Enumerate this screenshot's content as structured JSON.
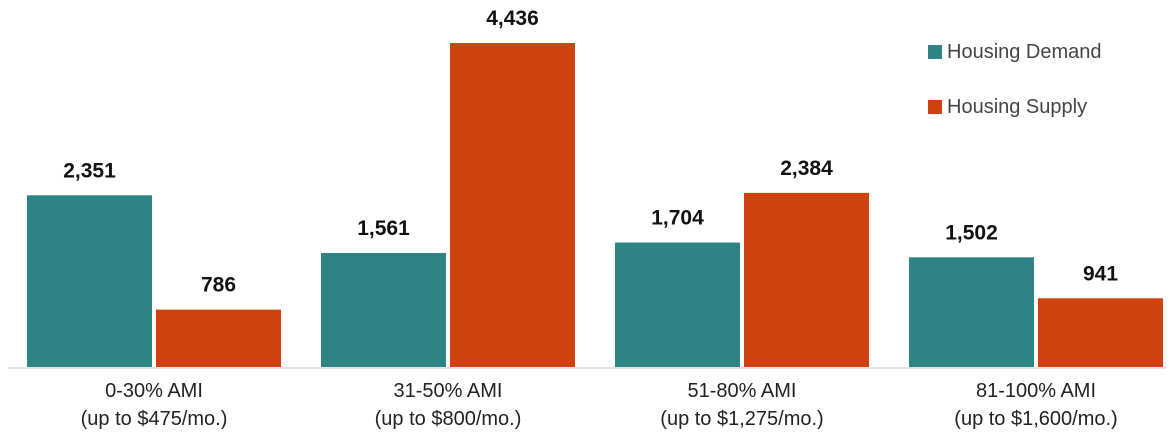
{
  "chart_data": {
    "type": "bar",
    "categories": [
      [
        "0-30% AMI",
        "(up to $475/mo.)"
      ],
      [
        "31-50% AMI",
        "(up to $800/mo.)"
      ],
      [
        "51-80% AMI",
        "(up to $1,275/mo.)"
      ],
      [
        "81-100% AMI",
        "(up to $1,600/mo.)"
      ]
    ],
    "series": [
      {
        "name": "Housing Demand",
        "color": "#2e8384",
        "values": [
          2351,
          1561,
          1704,
          1502
        ]
      },
      {
        "name": "Housing Supply",
        "color": "#cf4210",
        "values": [
          786,
          4436,
          2384,
          941
        ]
      }
    ],
    "value_labels": [
      [
        "2,351",
        "1,561",
        "1,704",
        "1,502"
      ],
      [
        "786",
        "4,436",
        "2,384",
        "941"
      ]
    ],
    "ylim": [
      0,
      4436
    ],
    "legend_position": "top-right",
    "grid": false,
    "title": "",
    "xlabel": "",
    "ylabel": ""
  }
}
